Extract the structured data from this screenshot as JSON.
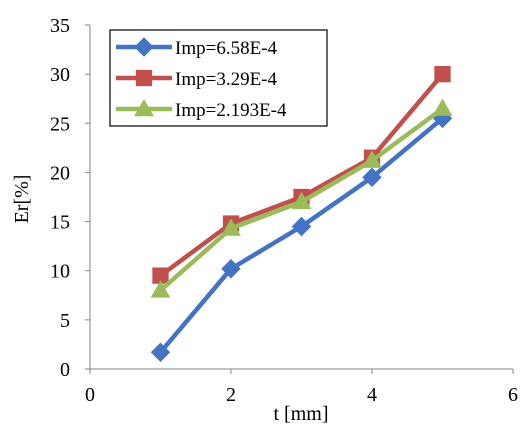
{
  "chart_data": {
    "type": "line",
    "xlabel": "t [mm]",
    "ylabel": "Er[%]",
    "xlim": [
      0,
      6
    ],
    "ylim": [
      0,
      35
    ],
    "xticks": [
      0,
      2,
      4,
      6
    ],
    "yticks": [
      0,
      5,
      10,
      15,
      20,
      25,
      30,
      35
    ],
    "x": [
      1,
      2,
      3,
      4,
      5
    ],
    "grid": false,
    "legend": "top-left",
    "series": [
      {
        "name": "Imp=6.58E-4",
        "marker": "diamond",
        "color": "#4472C4",
        "values": [
          1.7,
          10.2,
          14.5,
          19.5,
          25.5
        ]
      },
      {
        "name": "Imp=3.29E-4",
        "marker": "square",
        "color": "#C0504D",
        "values": [
          9.5,
          14.8,
          17.5,
          21.5,
          30.0
        ]
      },
      {
        "name": "Imp=2.193E-4",
        "marker": "triangle",
        "color": "#9BBB59",
        "values": [
          8.0,
          14.3,
          17.0,
          21.2,
          26.5
        ]
      }
    ]
  }
}
